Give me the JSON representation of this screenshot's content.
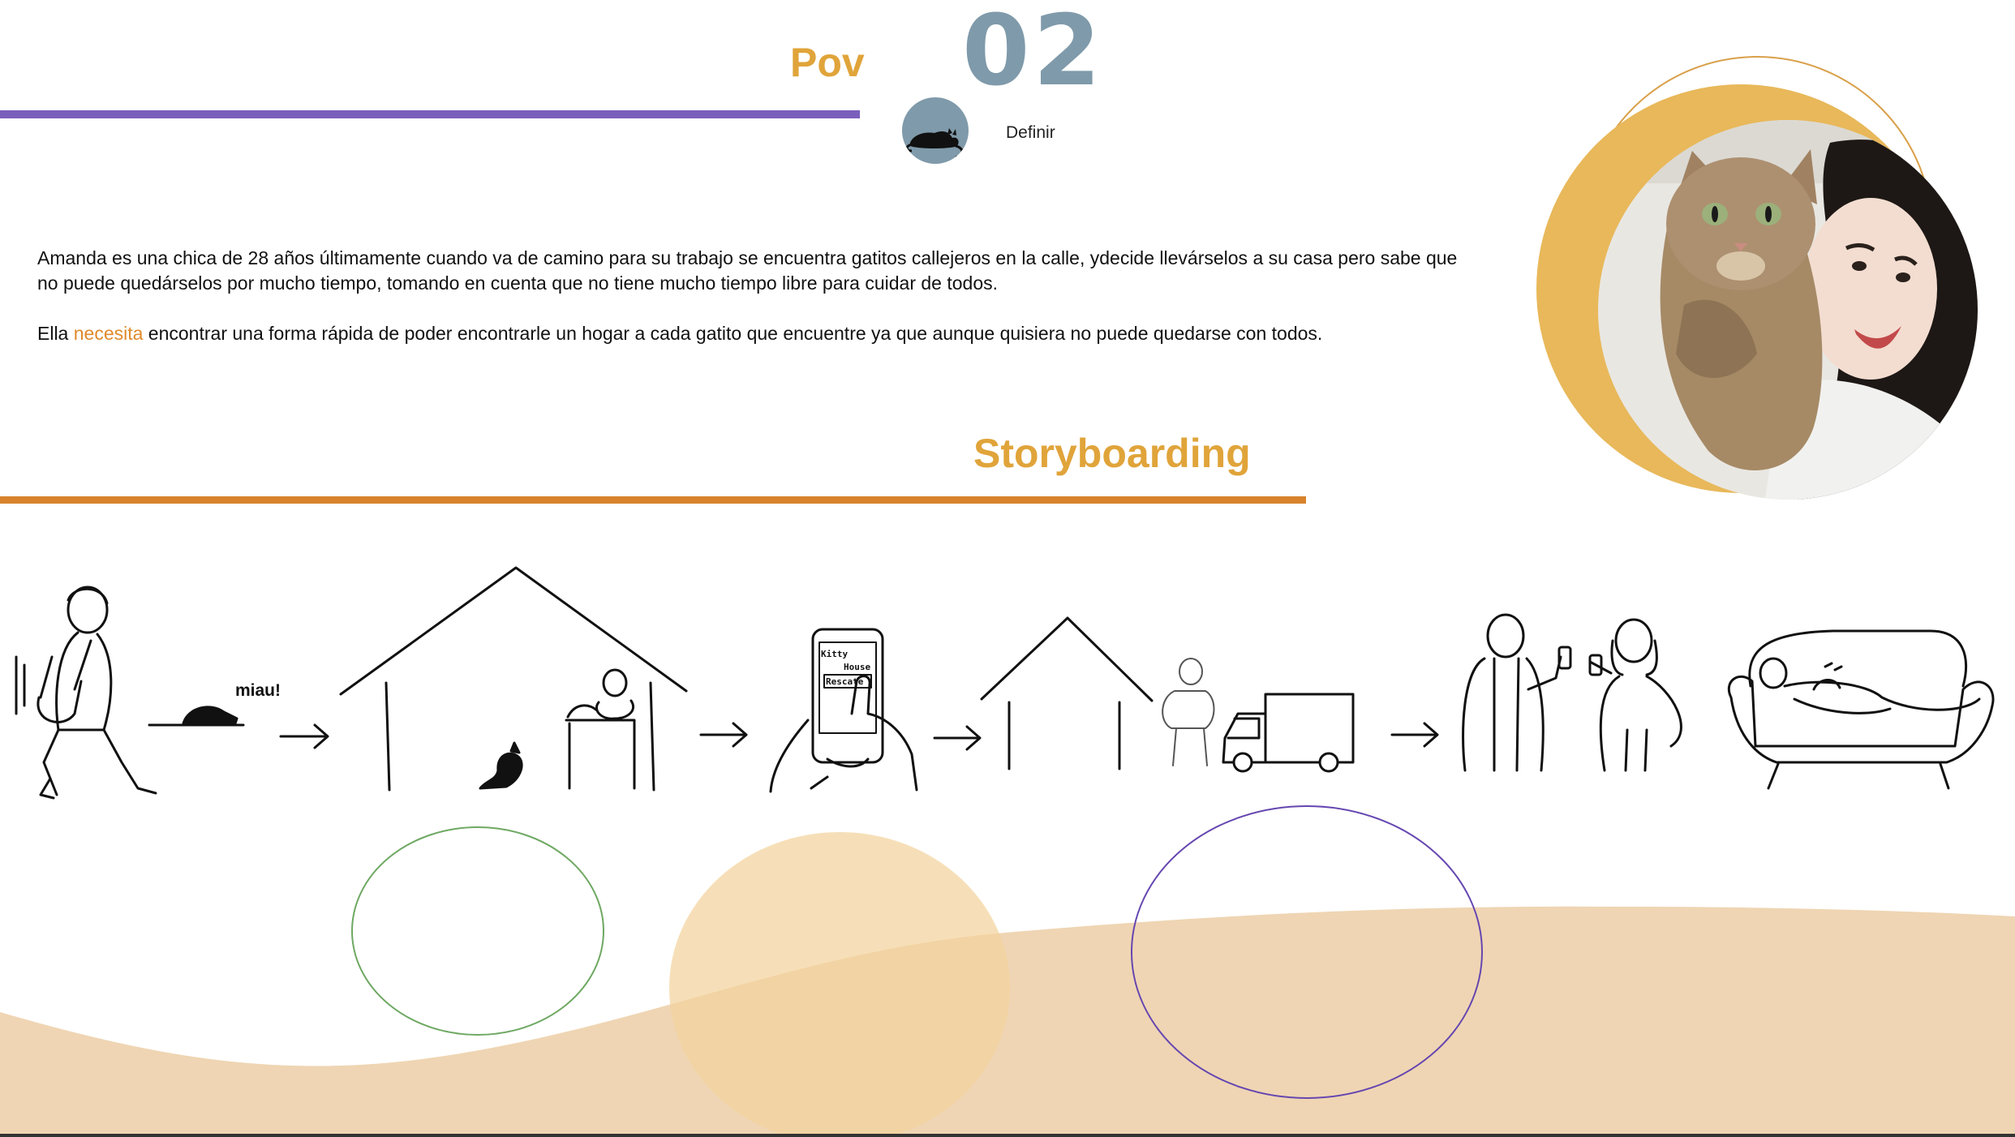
{
  "header": {
    "pov_title": "Pov",
    "step_number": "02",
    "step_label": "Definir"
  },
  "pov": {
    "paragraph_1": "Amanda es una chica de 28 años  últimamente cuando va de camino para su trabajo se encuentra gatitos callejeros en la calle, ydecide llevárselos a su casa pero sabe que no puede quedárselos por mucho tiempo, tomando en cuenta que no tiene mucho tiempo libre para cuidar de todos.",
    "paragraph_2_start": "Ella ",
    "paragraph_2_highlight": "necesita",
    "paragraph_2_end": " encontrar una forma rápida de poder encontrarle un hogar a cada gatito que encuentre  ya que  aunque quisiera no puede quedarse con todos."
  },
  "storyboard": {
    "title": "Storyboarding",
    "speech_text": "miau!",
    "phone_screen_line_1": "Kitty",
    "phone_screen_line_2": "House",
    "phone_screen_button": "Rescate"
  },
  "colors": {
    "accent_orange": "#e0a43a",
    "purple_line": "#7a5ebc",
    "orange_line": "#d8822c",
    "slate": "#7f9aaa",
    "sand": "#f0d6b4"
  }
}
